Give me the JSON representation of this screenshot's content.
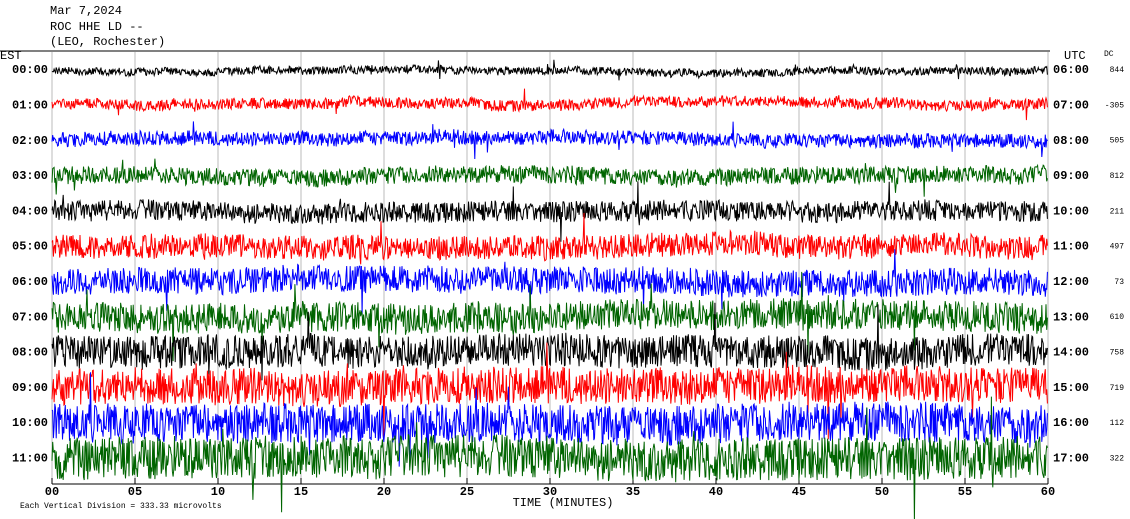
{
  "chart_data": {
    "type": "helicorder",
    "title_lines": [
      "Mar 7,2024",
      "ROC HHE LD --",
      "(LEO, Rochester)"
    ],
    "left_axis_title": "EST",
    "right_axis_title": "UTC",
    "dc_title": "DC",
    "xlabel": "TIME (MINUTES)",
    "footnote": "Each Vertical Division =  333.33 microvolts",
    "xlim": [
      0,
      60
    ],
    "xticks": [
      {
        "value": 0,
        "label": "00"
      },
      {
        "value": 5,
        "label": "05"
      },
      10,
      15,
      20,
      25,
      30,
      35,
      40,
      45,
      50,
      55,
      60
    ],
    "rows": [
      {
        "est": "00:00",
        "utc": "06:00",
        "dc": "844",
        "color": "#000000"
      },
      {
        "est": "01:00",
        "utc": "07:00",
        "dc": "-305",
        "color": "#ff0000"
      },
      {
        "est": "02:00",
        "utc": "08:00",
        "dc": "505",
        "color": "#0000ff"
      },
      {
        "est": "03:00",
        "utc": "09:00",
        "dc": "812",
        "color": "#006400"
      },
      {
        "est": "04:00",
        "utc": "10:00",
        "dc": "211",
        "color": "#000000"
      },
      {
        "est": "05:00",
        "utc": "11:00",
        "dc": "497",
        "color": "#ff0000"
      },
      {
        "est": "06:00",
        "utc": "12:00",
        "dc": "73",
        "color": "#0000ff"
      },
      {
        "est": "07:00",
        "utc": "13:00",
        "dc": "610",
        "color": "#006400"
      },
      {
        "est": "08:00",
        "utc": "14:00",
        "dc": "758",
        "color": "#000000"
      },
      {
        "est": "09:00",
        "utc": "15:00",
        "dc": "719",
        "color": "#ff0000"
      },
      {
        "est": "10:00",
        "utc": "16:00",
        "dc": "112",
        "color": "#0000ff"
      },
      {
        "est": "11:00",
        "utc": "17:00",
        "dc": "322",
        "color": "#006400"
      }
    ]
  }
}
